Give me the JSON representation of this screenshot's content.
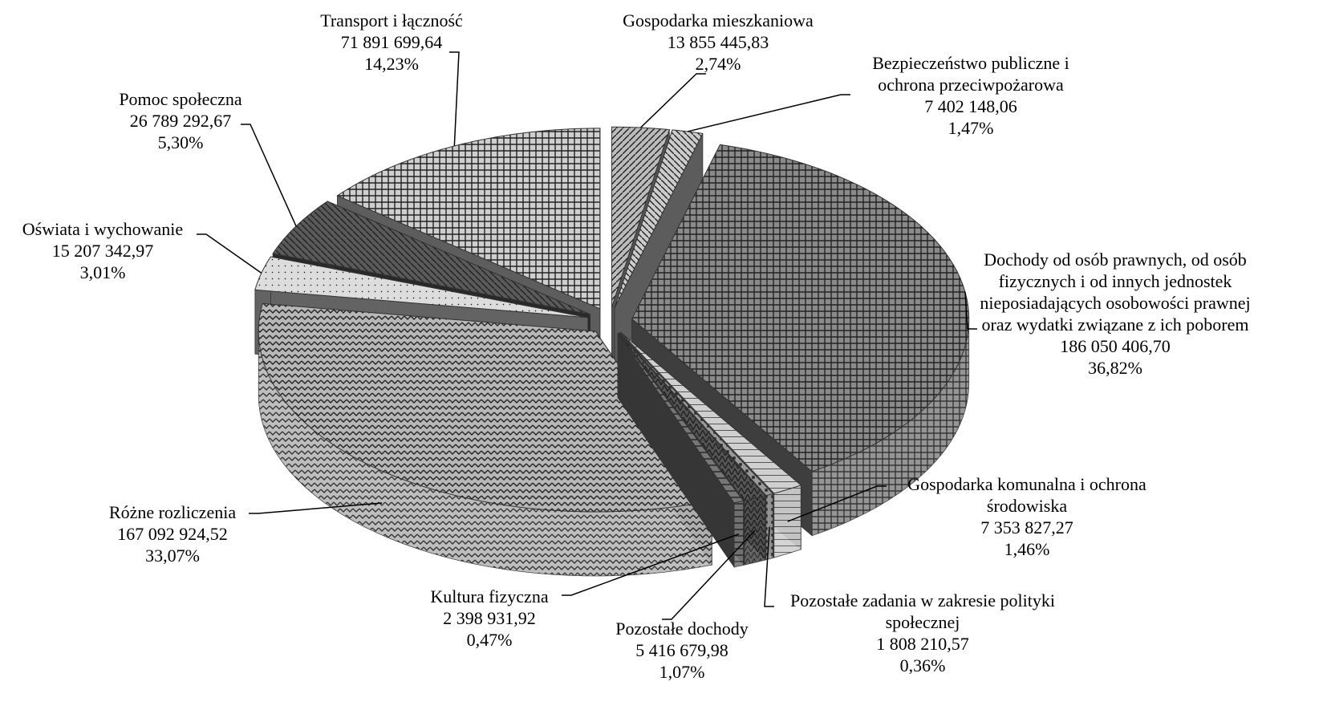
{
  "chart_data": {
    "type": "pie3d",
    "categories": [
      "Gospodarka mieszkaniowa",
      "Bezpieczeństwo publiczne i ochrona przeciwpożarowa",
      "Dochody od osób prawnych, od osób fizycznych i od innych jednostek nieposiadających osobowości prawnej oraz wydatki związane z ich poborem",
      "Gospodarka komunalna i ochrona środowiska",
      "Pozostałe zadania w zakresie polityki społecznej",
      "Pozostałe dochody",
      "Kultura fizyczna",
      "Różne rozliczenia",
      "Oświata i wychowanie",
      "Pomoc społeczna",
      "Transport i łączność"
    ],
    "values": [
      2.74,
      1.47,
      36.82,
      1.46,
      0.36,
      1.07,
      0.47,
      33.07,
      3.01,
      5.3,
      14.23
    ],
    "value_labels": [
      "2,74%",
      "1,47%",
      "36,82%",
      "1,46%",
      "0,36%",
      "1,07%",
      "0,47%",
      "33,07%",
      "3,01%",
      "5,30%",
      "14,23%"
    ],
    "amounts": [
      13855445.83,
      7402148.06,
      186050406.7,
      7353827.27,
      1808210.57,
      5416679.98,
      2398931.92,
      167092924.52,
      15207342.97,
      26789292.67,
      71891699.64
    ],
    "amount_labels": [
      "13 855 445,83",
      "7 402 148,06",
      "186 050 406,70",
      "7 353 827,27",
      "1 808 210,57",
      "5 416 679,98",
      "2 398 931,92",
      "167 092 924,52",
      "15 207 342,97",
      "26 789 292,67",
      "71 891 699,64"
    ],
    "colors": [
      "#bbbbbb",
      "#cccccc",
      "#8a8a8a",
      "#d0d0d0",
      "#9a9a9a",
      "#555555",
      "#777777",
      "#b8b8b8",
      "#dddddd",
      "#5a5a5a",
      "#cfcfcf"
    ]
  }
}
